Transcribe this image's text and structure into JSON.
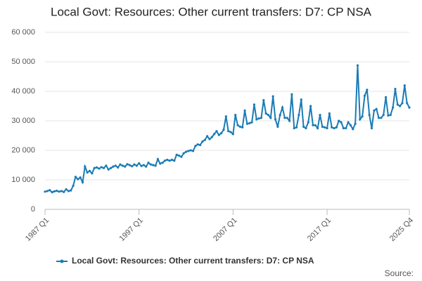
{
  "chart_data": {
    "type": "line",
    "title": "Local Govt: Resources: Other current transfers: D7: CP NSA",
    "source": "Source:",
    "categories": [
      "1987 Q1",
      null,
      null,
      null,
      null,
      null,
      null,
      null,
      null,
      null,
      null,
      null,
      null,
      null,
      null,
      null,
      null,
      null,
      null,
      null,
      null,
      null,
      null,
      null,
      null,
      null,
      null,
      null,
      null,
      null,
      null,
      null,
      null,
      null,
      null,
      null,
      null,
      null,
      null,
      null,
      "1997 Q1",
      null,
      null,
      null,
      null,
      null,
      null,
      null,
      null,
      null,
      null,
      null,
      null,
      null,
      null,
      null,
      null,
      null,
      null,
      null,
      null,
      null,
      null,
      null,
      null,
      null,
      null,
      null,
      null,
      null,
      null,
      null,
      null,
      null,
      null,
      null,
      null,
      null,
      null,
      null,
      "2007 Q1",
      null,
      null,
      null,
      null,
      null,
      null,
      null,
      null,
      null,
      null,
      null,
      null,
      null,
      null,
      null,
      null,
      null,
      null,
      null,
      null,
      null,
      null,
      null,
      null,
      null,
      null,
      null,
      null,
      null,
      null,
      null,
      null,
      null,
      null,
      null,
      null,
      null,
      null,
      null,
      "2017 Q1",
      null,
      null,
      null,
      null,
      null,
      null,
      null,
      null,
      null,
      null,
      null,
      null,
      null,
      null,
      null,
      null,
      null,
      null,
      null,
      null,
      null,
      null,
      null,
      null,
      null,
      null,
      null,
      null,
      null,
      null,
      null,
      null,
      null,
      null,
      "2025 Q4"
    ],
    "series": [
      {
        "name": "Local Govt: Resources: Other current transfers: D7: CP NSA",
        "color": "#1a7bb5",
        "values": [
          6000,
          6200,
          6500,
          5800,
          6100,
          6300,
          6000,
          6200,
          5900,
          6800,
          6200,
          6400,
          8000,
          11000,
          10200,
          10800,
          9200,
          14500,
          12500,
          13000,
          12200,
          14000,
          14200,
          13800,
          14300,
          14000,
          14800,
          13500,
          14000,
          14500,
          14800,
          14200,
          15200,
          14800,
          14500,
          15300,
          15000,
          14600,
          15200,
          14800,
          15600,
          14700,
          15000,
          14500,
          15800,
          15200,
          15000,
          14800,
          17000,
          15500,
          15800,
          16500,
          16800,
          16500,
          16800,
          16500,
          18500,
          18200,
          17800,
          19000,
          19500,
          19800,
          20000,
          19800,
          21500,
          22000,
          21800,
          23000,
          23500,
          24800,
          23800,
          24500,
          25500,
          26500,
          25200,
          25800,
          27000,
          31500,
          26500,
          26200,
          25500,
          32000,
          28500,
          28000,
          27800,
          33500,
          29000,
          29200,
          29500,
          35500,
          30500,
          30800,
          31000,
          37000,
          32500,
          32000,
          31000,
          38300,
          30500,
          28000,
          32000,
          34500,
          31000,
          31000,
          30000,
          39000,
          27500,
          27800,
          32000,
          37200,
          28000,
          27500,
          29500,
          35000,
          28500,
          28500,
          27500,
          32000,
          28000,
          27800,
          27500,
          32500,
          27800,
          27500,
          27800,
          30000,
          29500,
          27500,
          27500,
          29500,
          28500,
          27200,
          29000,
          48800,
          30500,
          31500,
          38500,
          40500,
          32000,
          27500,
          33500,
          34000,
          31000,
          31000,
          32000,
          38000,
          31800,
          32000,
          34500,
          40800,
          35500,
          35000,
          36000,
          42000,
          36000,
          34500
        ]
      }
    ],
    "ylim": [
      0,
      60000
    ],
    "yticks": [
      0,
      {
        "value": 10000,
        "label": "10 000"
      },
      {
        "value": 20000,
        "label": "20 000"
      },
      {
        "value": 30000,
        "label": "30 000"
      },
      {
        "value": 40000,
        "label": "40 000"
      },
      {
        "value": 50000,
        "label": "50 000"
      },
      {
        "value": 60000,
        "label": "60 000"
      }
    ],
    "grid": true
  }
}
